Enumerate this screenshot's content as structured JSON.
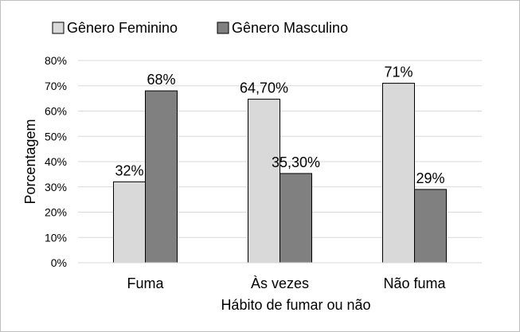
{
  "chart_data": {
    "type": "bar",
    "categories": [
      "Fuma",
      "Às vezes",
      "Não fuma"
    ],
    "series": [
      {
        "name": "Gênero Feminino",
        "color": "#d9d9d9",
        "values": [
          32,
          64.7,
          71
        ],
        "labels": [
          "32%",
          "64,70%",
          "71%"
        ]
      },
      {
        "name": "Gênero Masculino",
        "color": "#808080",
        "values": [
          68,
          35.3,
          29
        ],
        "labels": [
          "68%",
          "35,30%",
          "29%"
        ]
      }
    ],
    "title": "",
    "xlabel": "Hábito de fumar ou não",
    "ylabel": "Porcentagem",
    "ylim": [
      0,
      80
    ],
    "yticks": [
      "0%",
      "10%",
      "20%",
      "30%",
      "40%",
      "50%",
      "60%",
      "70%",
      "80%"
    ],
    "grid": true,
    "legend_position": "top-left"
  }
}
